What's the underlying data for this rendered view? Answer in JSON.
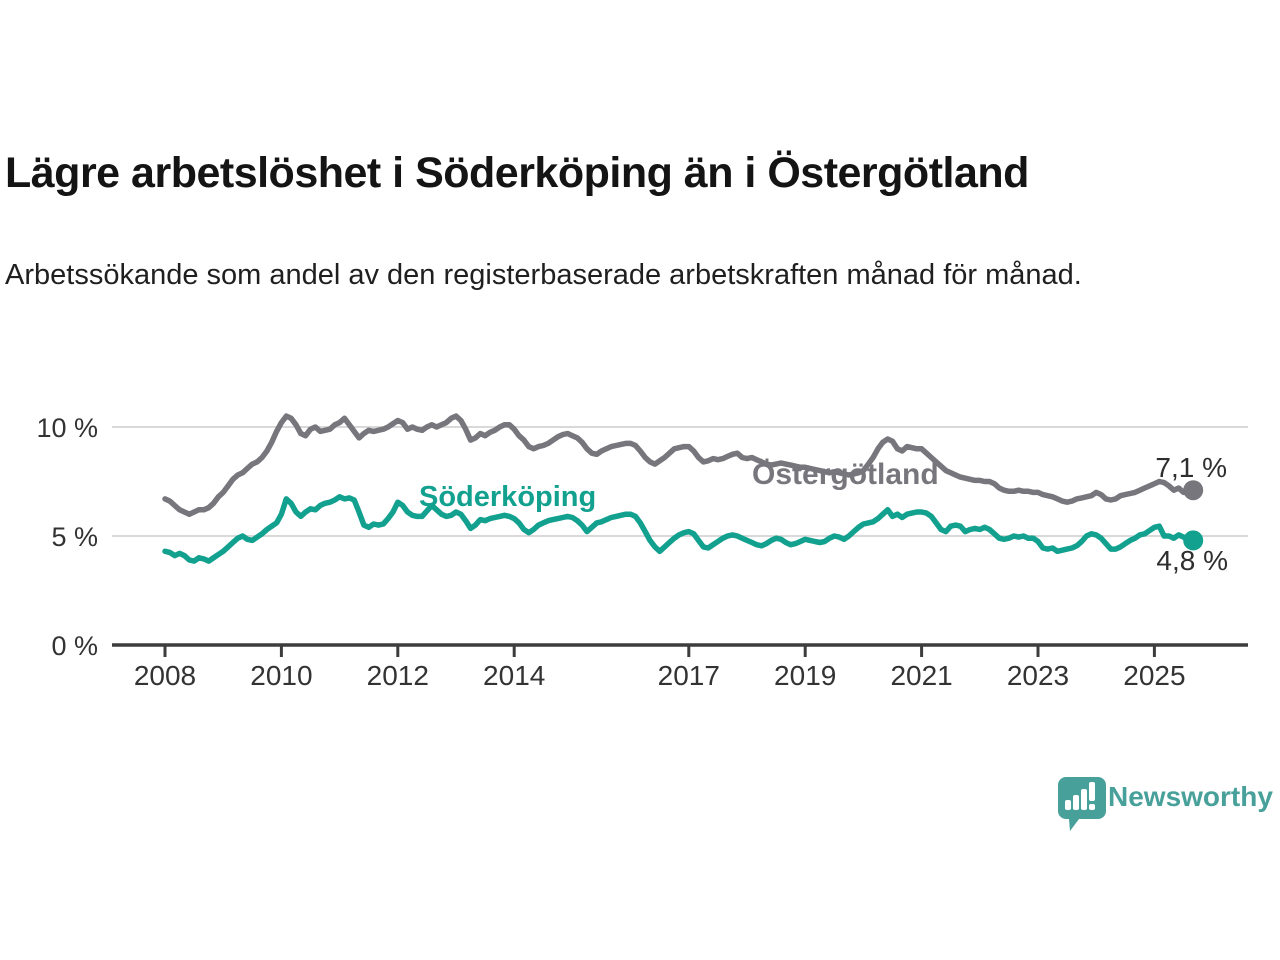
{
  "header": {
    "title": "Lägre arbetslöshet i Söderköping än i Östergötland",
    "subtitle": "Arbetssökande som andel av den registerbaserade arbetskraften månad för månad."
  },
  "footer": {
    "brand": "Newsworthy"
  },
  "colors": {
    "ostergotland_line": "#76767c",
    "soderkoping_line": "#12a08f",
    "brand_teal": "#48a09a",
    "gridline": "#d9d9d9",
    "axis": "#3d3d3d",
    "tick_label": "#333333",
    "value_label": "#2e2e2e",
    "title_text": "#141414"
  },
  "chart_data": {
    "type": "line",
    "title": "Lägre arbetslöshet i Söderköping än i Östergötland",
    "subtitle": "Arbetssökande som andel av den registerbaserade arbetskraften månad för månad.",
    "unit": "%",
    "x_start_year": 2008,
    "x_start_month": 1,
    "x_end_year": 2025,
    "x_end_month": 9,
    "x_ticks": [
      2008,
      2010,
      2012,
      2014,
      2017,
      2019,
      2021,
      2023,
      2025
    ],
    "y_ticks": [
      {
        "value": 0,
        "label": "0 %",
        "grid": false
      },
      {
        "value": 5,
        "label": "5 %",
        "grid": true
      },
      {
        "value": 10,
        "label": "10 %",
        "grid": true
      }
    ],
    "ylim": [
      0,
      11.2
    ],
    "grid": true,
    "legend_position": "inline-labels",
    "series": [
      {
        "name": "Östergötland",
        "color": "#76767c",
        "end_label": "7,1 %",
        "end_value": 7.1,
        "values": [
          6.7,
          6.6,
          6.4,
          6.2,
          6.1,
          6.0,
          6.1,
          6.2,
          6.2,
          6.3,
          6.5,
          6.8,
          7.0,
          7.3,
          7.6,
          7.8,
          7.9,
          8.1,
          8.3,
          8.4,
          8.6,
          8.9,
          9.3,
          9.8,
          10.2,
          10.5,
          10.4,
          10.1,
          9.7,
          9.6,
          9.9,
          10.0,
          9.8,
          9.85,
          9.9,
          10.1,
          10.2,
          10.4,
          10.1,
          9.8,
          9.5,
          9.7,
          9.85,
          9.8,
          9.85,
          9.9,
          10.0,
          10.15,
          10.3,
          10.2,
          9.9,
          10.0,
          9.9,
          9.85,
          10.0,
          10.1,
          10.0,
          10.1,
          10.2,
          10.4,
          10.5,
          10.3,
          9.9,
          9.4,
          9.5,
          9.7,
          9.6,
          9.75,
          9.85,
          10.0,
          10.1,
          10.1,
          9.9,
          9.6,
          9.4,
          9.1,
          9.0,
          9.1,
          9.15,
          9.25,
          9.4,
          9.55,
          9.65,
          9.7,
          9.6,
          9.5,
          9.3,
          9.0,
          8.8,
          8.75,
          8.9,
          9.0,
          9.1,
          9.15,
          9.2,
          9.25,
          9.25,
          9.15,
          8.9,
          8.6,
          8.4,
          8.3,
          8.45,
          8.6,
          8.8,
          9.0,
          9.05,
          9.1,
          9.1,
          8.9,
          8.6,
          8.4,
          8.45,
          8.55,
          8.5,
          8.55,
          8.65,
          8.75,
          8.8,
          8.6,
          8.55,
          8.6,
          8.5,
          8.4,
          8.3,
          8.25,
          8.3,
          8.35,
          8.3,
          8.25,
          8.2,
          8.15,
          8.15,
          8.1,
          8.05,
          8.0,
          7.95,
          7.9,
          7.95,
          7.9,
          7.85,
          7.8,
          7.85,
          7.9,
          8.0,
          8.3,
          8.6,
          9.0,
          9.3,
          9.45,
          9.35,
          9.0,
          8.9,
          9.1,
          9.05,
          9.0,
          9.0,
          8.8,
          8.6,
          8.4,
          8.2,
          8.0,
          7.9,
          7.8,
          7.7,
          7.65,
          7.6,
          7.55,
          7.55,
          7.5,
          7.5,
          7.4,
          7.2,
          7.1,
          7.05,
          7.05,
          7.1,
          7.05,
          7.05,
          7.0,
          7.0,
          6.9,
          6.85,
          6.8,
          6.7,
          6.6,
          6.55,
          6.6,
          6.7,
          6.75,
          6.8,
          6.85,
          7.0,
          6.9,
          6.7,
          6.65,
          6.7,
          6.85,
          6.9,
          6.95,
          7.0,
          7.1,
          7.2,
          7.3,
          7.4,
          7.5,
          7.45,
          7.3,
          7.1,
          7.2,
          7.0,
          7.05,
          7.1
        ]
      },
      {
        "name": "Söderköping",
        "color": "#12a08f",
        "end_label": "4,8 %",
        "end_value": 4.8,
        "values": [
          4.3,
          4.25,
          4.1,
          4.2,
          4.1,
          3.9,
          3.85,
          4.0,
          3.95,
          3.85,
          4.0,
          4.15,
          4.3,
          4.5,
          4.7,
          4.9,
          5.0,
          4.85,
          4.8,
          4.95,
          5.1,
          5.3,
          5.45,
          5.6,
          6.0,
          6.7,
          6.5,
          6.1,
          5.9,
          6.1,
          6.25,
          6.2,
          6.4,
          6.5,
          6.55,
          6.65,
          6.8,
          6.7,
          6.75,
          6.65,
          6.1,
          5.5,
          5.4,
          5.55,
          5.5,
          5.55,
          5.8,
          6.1,
          6.55,
          6.4,
          6.1,
          5.95,
          5.9,
          5.9,
          6.15,
          6.4,
          6.2,
          6.0,
          5.9,
          5.95,
          6.1,
          6.0,
          5.7,
          5.35,
          5.5,
          5.75,
          5.7,
          5.8,
          5.85,
          5.9,
          5.95,
          5.9,
          5.8,
          5.6,
          5.3,
          5.15,
          5.3,
          5.5,
          5.6,
          5.7,
          5.75,
          5.8,
          5.85,
          5.9,
          5.85,
          5.7,
          5.5,
          5.2,
          5.4,
          5.6,
          5.65,
          5.75,
          5.85,
          5.9,
          5.95,
          6.0,
          6.0,
          5.9,
          5.6,
          5.2,
          4.8,
          4.5,
          4.3,
          4.5,
          4.7,
          4.9,
          5.05,
          5.15,
          5.2,
          5.1,
          4.8,
          4.5,
          4.45,
          4.6,
          4.75,
          4.9,
          5.0,
          5.05,
          5.0,
          4.9,
          4.8,
          4.7,
          4.6,
          4.55,
          4.65,
          4.8,
          4.9,
          4.85,
          4.7,
          4.6,
          4.65,
          4.75,
          4.85,
          4.8,
          4.75,
          4.7,
          4.75,
          4.9,
          5.0,
          4.95,
          4.85,
          5.0,
          5.2,
          5.4,
          5.55,
          5.6,
          5.65,
          5.8,
          6.0,
          6.2,
          5.9,
          6.0,
          5.85,
          6.0,
          6.05,
          6.1,
          6.1,
          6.05,
          5.9,
          5.6,
          5.3,
          5.2,
          5.45,
          5.5,
          5.45,
          5.2,
          5.3,
          5.35,
          5.3,
          5.4,
          5.3,
          5.1,
          4.9,
          4.85,
          4.9,
          5.0,
          4.95,
          5.0,
          4.9,
          4.9,
          4.75,
          4.45,
          4.4,
          4.45,
          4.3,
          4.35,
          4.4,
          4.45,
          4.55,
          4.75,
          5.0,
          5.1,
          5.05,
          4.9,
          4.65,
          4.4,
          4.4,
          4.5,
          4.65,
          4.8,
          4.9,
          5.05,
          5.1,
          5.25,
          5.4,
          5.45,
          5.0,
          5.0,
          4.9,
          5.05,
          4.95,
          4.85,
          4.8
        ]
      }
    ]
  }
}
